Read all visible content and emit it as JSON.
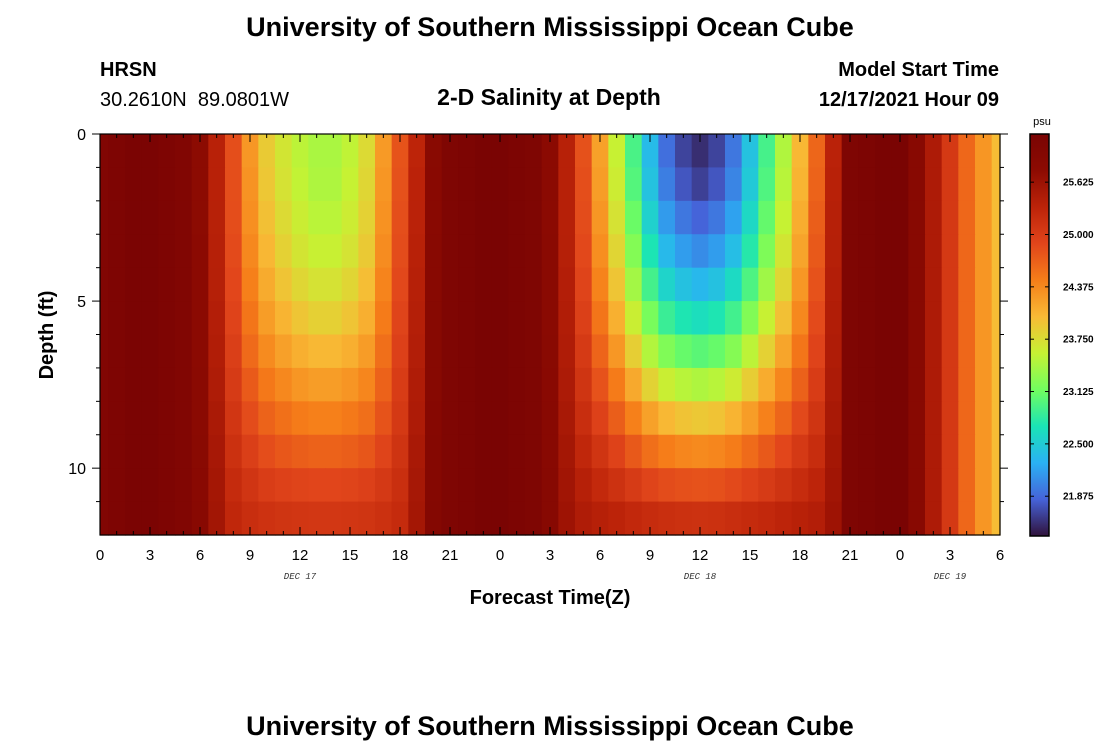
{
  "header": {
    "title": "University of Southern Mississippi Ocean Cube",
    "station": "HRSN",
    "coordinates": "30.2610N  89.0801W",
    "subtitle": "2-D Salinity at Depth",
    "model_label": "Model Start Time",
    "model_time": "12/17/2021 Hour 09"
  },
  "footer": {
    "title": "University of Southern Mississippi Ocean Cube"
  },
  "chart_data": {
    "type": "heatmap",
    "title": "2-D Salinity at Depth",
    "xlabel": "Forecast Time(Z)",
    "ylabel": "Depth (ft)",
    "x_start_hour": 0,
    "x_end_hour": 54,
    "time_step_hours": 1,
    "ylim": [
      0,
      12
    ],
    "y_inverted": true,
    "y_ticks": [
      0,
      5,
      10
    ],
    "x_tick_labels": [
      "0",
      "3",
      "6",
      "9",
      "12",
      "15",
      "18",
      "21",
      "0",
      "3",
      "6",
      "9",
      "12",
      "15",
      "18",
      "21",
      "0",
      "3",
      "6"
    ],
    "x_tick_hours": [
      0,
      3,
      6,
      9,
      12,
      15,
      18,
      21,
      24,
      27,
      30,
      33,
      36,
      39,
      42,
      45,
      48,
      51,
      54
    ],
    "date_labels": [
      {
        "text": "DEC 17",
        "hour": 12
      },
      {
        "text": "DEC 18",
        "hour": 36
      },
      {
        "text": "DEC 19",
        "hour": 51
      }
    ],
    "depth_levels_ft": [
      0.5,
      1.5,
      2.5,
      3.5,
      4.5,
      5.5,
      6.5,
      7.5,
      8.5,
      9.5,
      10.5,
      11.5
    ],
    "colorbar": {
      "unit": "psu",
      "min": 21.4,
      "max": 26.2,
      "tick_labels": [
        "21.875",
        "22.500",
        "23.125",
        "23.750",
        "24.375",
        "25.000",
        "25.625"
      ],
      "tick_values": [
        21.875,
        22.5,
        23.125,
        23.75,
        24.375,
        25.0,
        25.625
      ]
    },
    "colors": {
      "stops": [
        "#30123b",
        "#4662d8",
        "#2ab1f4",
        "#1ae4b6",
        "#71fd5f",
        "#c6f233",
        "#f8ba35",
        "#f67e19",
        "#e1451b",
        "#bc2309",
        "#8d0b02",
        "#7a0403"
      ]
    },
    "salinity_psu": [
      [
        26.05,
        26.11,
        26.17,
        26.17,
        26.11,
        26.05,
        25.79,
        25.36,
        24.82,
        24.27,
        23.89,
        23.68,
        23.53,
        23.44,
        23.44,
        23.55,
        23.77,
        24.25,
        24.78,
        25.32,
        25.85,
        26.08,
        26.14,
        26.2,
        26.2,
        26.14,
        26.08,
        25.81,
        25.37,
        24.8,
        24.2,
        23.59,
        22.95,
        22.36,
        21.91,
        21.67,
        21.55,
        21.67,
        21.95,
        22.42,
        22.93,
        23.47,
        24.03,
        24.64,
        25.35,
        26.08,
        26.14,
        26.2,
        26.2,
        25.87,
        25.47,
        25.05,
        24.63,
        24.28,
        24.0
      ],
      [
        26.05,
        26.11,
        26.17,
        26.17,
        26.11,
        26.05,
        25.79,
        25.36,
        24.82,
        24.3,
        23.92,
        23.71,
        23.56,
        23.46,
        23.46,
        23.58,
        23.8,
        24.28,
        24.8,
        25.34,
        25.86,
        26.08,
        26.14,
        26.2,
        26.2,
        26.14,
        26.08,
        25.82,
        25.37,
        24.82,
        24.23,
        23.63,
        23.0,
        22.42,
        21.99,
        21.77,
        21.65,
        21.77,
        22.03,
        22.48,
        22.98,
        23.51,
        24.06,
        24.66,
        25.36,
        26.08,
        26.14,
        26.2,
        26.2,
        25.87,
        25.47,
        25.05,
        24.63,
        24.28,
        24.0
      ],
      [
        26.05,
        26.11,
        26.17,
        26.17,
        26.11,
        26.05,
        25.79,
        25.37,
        24.83,
        24.33,
        23.97,
        23.77,
        23.62,
        23.52,
        23.52,
        23.63,
        23.84,
        24.31,
        24.82,
        25.35,
        25.86,
        26.08,
        26.14,
        26.2,
        26.2,
        26.14,
        26.08,
        25.82,
        25.38,
        24.84,
        24.28,
        23.71,
        23.11,
        22.55,
        22.15,
        21.95,
        21.85,
        21.95,
        22.19,
        22.61,
        23.08,
        23.58,
        24.11,
        24.7,
        25.38,
        26.08,
        26.14,
        26.2,
        26.2,
        25.87,
        25.47,
        25.05,
        24.63,
        24.28,
        24.0
      ],
      [
        26.05,
        26.11,
        26.17,
        26.17,
        26.11,
        26.05,
        25.8,
        25.38,
        24.85,
        24.38,
        24.04,
        23.84,
        23.69,
        23.6,
        23.6,
        23.7,
        23.9,
        24.35,
        24.84,
        25.36,
        25.87,
        26.08,
        26.14,
        26.2,
        26.2,
        26.14,
        26.08,
        25.83,
        25.39,
        24.87,
        24.34,
        23.81,
        23.24,
        22.72,
        22.34,
        22.16,
        22.07,
        22.16,
        22.38,
        22.77,
        23.21,
        23.68,
        24.18,
        24.74,
        25.39,
        26.08,
        26.14,
        26.2,
        26.2,
        25.87,
        25.47,
        25.05,
        24.63,
        24.28,
        24.0
      ],
      [
        26.05,
        26.11,
        26.17,
        26.17,
        26.11,
        26.05,
        25.8,
        25.39,
        24.88,
        24.44,
        24.13,
        23.94,
        23.8,
        23.71,
        23.71,
        23.81,
        23.99,
        24.41,
        24.87,
        25.38,
        25.88,
        26.08,
        26.14,
        26.2,
        26.2,
        26.14,
        26.08,
        25.83,
        25.41,
        24.91,
        24.42,
        23.93,
        23.4,
        22.92,
        22.57,
        22.41,
        22.33,
        22.41,
        22.62,
        22.97,
        23.38,
        23.8,
        24.27,
        24.79,
        25.41,
        26.08,
        26.14,
        26.2,
        26.2,
        25.87,
        25.47,
        25.05,
        24.63,
        24.28,
        24.0
      ],
      [
        26.05,
        26.11,
        26.17,
        26.17,
        26.11,
        26.05,
        25.81,
        25.41,
        24.92,
        24.52,
        24.23,
        24.06,
        23.93,
        23.85,
        23.85,
        23.94,
        24.1,
        24.48,
        24.91,
        25.4,
        25.89,
        26.08,
        26.14,
        26.2,
        26.2,
        26.14,
        26.08,
        25.84,
        25.43,
        24.96,
        24.52,
        24.09,
        23.61,
        23.18,
        22.87,
        22.73,
        22.66,
        22.73,
        22.91,
        23.23,
        23.59,
        23.97,
        24.38,
        24.85,
        25.43,
        26.08,
        26.14,
        26.2,
        26.2,
        25.87,
        25.47,
        25.05,
        24.63,
        24.28,
        24.0
      ],
      [
        26.05,
        26.11,
        26.17,
        26.17,
        26.11,
        26.05,
        25.82,
        25.43,
        24.97,
        24.61,
        24.36,
        24.21,
        24.1,
        24.03,
        24.03,
        24.1,
        24.24,
        24.57,
        24.95,
        25.42,
        25.9,
        26.08,
        26.14,
        26.2,
        26.2,
        26.14,
        26.08,
        25.85,
        25.45,
        25.03,
        24.65,
        24.27,
        23.86,
        23.48,
        23.22,
        23.09,
        23.03,
        23.09,
        23.25,
        23.53,
        23.84,
        24.17,
        24.52,
        24.92,
        25.45,
        26.08,
        26.14,
        26.2,
        26.2,
        25.87,
        25.47,
        25.05,
        24.63,
        24.28,
        24.0
      ],
      [
        26.05,
        26.11,
        26.17,
        26.17,
        26.11,
        26.05,
        25.83,
        25.46,
        25.02,
        24.73,
        24.5,
        24.38,
        24.28,
        24.23,
        24.23,
        24.29,
        24.4,
        24.67,
        25.0,
        25.45,
        25.91,
        26.08,
        26.14,
        26.2,
        26.2,
        26.14,
        26.08,
        25.86,
        25.48,
        25.1,
        24.79,
        24.48,
        24.14,
        23.83,
        23.61,
        23.51,
        23.46,
        23.51,
        23.64,
        23.87,
        24.12,
        24.39,
        24.68,
        25.0,
        25.48,
        26.08,
        26.14,
        26.2,
        26.2,
        25.87,
        25.47,
        25.05,
        24.63,
        24.28,
        24.0
      ],
      [
        26.05,
        26.11,
        26.17,
        26.17,
        26.11,
        26.05,
        25.84,
        25.49,
        25.08,
        24.84,
        24.66,
        24.56,
        24.48,
        24.44,
        24.44,
        24.49,
        24.57,
        24.78,
        25.05,
        25.47,
        25.92,
        26.08,
        26.14,
        26.2,
        26.2,
        26.14,
        26.08,
        25.87,
        25.51,
        25.19,
        24.94,
        24.7,
        24.44,
        24.2,
        24.03,
        23.95,
        23.91,
        23.95,
        24.06,
        24.23,
        24.43,
        24.64,
        24.86,
        25.1,
        25.51,
        26.08,
        26.14,
        26.2,
        26.2,
        25.87,
        25.47,
        25.05,
        24.63,
        24.28,
        24.0
      ],
      [
        26.05,
        26.11,
        26.17,
        26.17,
        26.11,
        26.05,
        25.85,
        25.52,
        25.15,
        24.97,
        24.83,
        24.75,
        24.7,
        24.67,
        24.67,
        24.7,
        24.76,
        24.91,
        25.11,
        25.5,
        25.94,
        26.08,
        26.14,
        26.2,
        26.2,
        26.14,
        26.08,
        25.88,
        25.55,
        25.28,
        25.1,
        24.93,
        24.74,
        24.57,
        24.46,
        24.4,
        24.37,
        24.4,
        24.47,
        24.6,
        24.74,
        24.88,
        25.04,
        25.2,
        25.55,
        26.08,
        26.14,
        26.2,
        26.2,
        25.87,
        25.47,
        25.05,
        24.63,
        24.28,
        24.0
      ],
      [
        26.05,
        26.11,
        26.17,
        26.17,
        26.11,
        26.05,
        25.86,
        25.55,
        25.22,
        25.09,
        24.99,
        24.94,
        24.91,
        24.89,
        24.89,
        24.91,
        24.95,
        25.04,
        25.17,
        25.53,
        25.95,
        26.08,
        26.14,
        26.2,
        26.2,
        26.14,
        26.08,
        25.9,
        25.58,
        25.38,
        25.25,
        25.14,
        25.02,
        24.91,
        24.84,
        24.81,
        24.79,
        24.81,
        24.86,
        24.94,
        25.02,
        25.11,
        25.21,
        25.31,
        25.58,
        26.08,
        26.14,
        26.2,
        26.2,
        25.87,
        25.47,
        25.05,
        24.63,
        24.28,
        24.0
      ],
      [
        26.05,
        26.11,
        26.17,
        26.17,
        26.11,
        26.05,
        25.87,
        25.57,
        25.28,
        25.19,
        25.13,
        25.1,
        25.08,
        25.07,
        25.07,
        25.08,
        25.1,
        25.15,
        25.22,
        25.55,
        25.96,
        26.08,
        26.14,
        26.2,
        26.2,
        26.14,
        26.08,
        25.91,
        25.61,
        25.45,
        25.38,
        25.33,
        25.26,
        25.21,
        25.17,
        25.15,
        25.14,
        25.15,
        25.18,
        25.22,
        25.26,
        25.31,
        25.36,
        25.41,
        25.61,
        26.08,
        26.14,
        26.2,
        26.2,
        25.87,
        25.47,
        25.05,
        24.63,
        24.28,
        24.0
      ]
    ]
  }
}
